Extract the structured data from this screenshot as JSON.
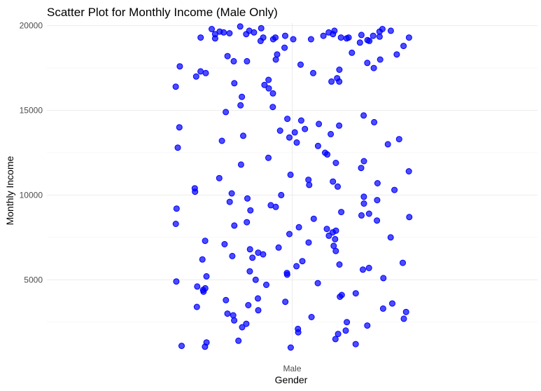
{
  "chart_data": {
    "type": "scatter",
    "title": "Scatter Plot for Monthly Income (Male Only)",
    "xlabel": "Gender",
    "ylabel": "Monthly Income",
    "categories": [
      "Male"
    ],
    "y_ticks": [
      5000,
      10000,
      15000,
      20000
    ],
    "y_tick_labels": [
      "5000",
      "10000",
      "15000",
      "20000"
    ],
    "ylim": [
      958,
      20150
    ],
    "grid": true,
    "legend": "none",
    "point_color": "#0000ff",
    "series": [
      {
        "category": "Male",
        "jitter": [
          -0.48,
          0.48
        ],
        "values": [
          19600,
          19500,
          19400,
          19300,
          19700,
          19500,
          19250,
          19800,
          19300,
          19100,
          19300,
          19600,
          19450,
          19650,
          19200,
          19550,
          19600,
          19000,
          19350,
          19400,
          19300,
          19400,
          19250,
          19100,
          19950,
          19850,
          19700,
          19650,
          19200,
          19300,
          19150,
          19500,
          19800,
          19700,
          19300,
          19200,
          18800,
          18700,
          18400,
          18200,
          18300,
          18000,
          17800,
          17900,
          17700,
          17500,
          17400,
          17300,
          17200,
          17000,
          16900,
          16800,
          16700,
          16600,
          16500,
          16300,
          16000,
          18300,
          18000,
          17600,
          17900,
          17200,
          16700,
          16400,
          15800,
          15300,
          15200,
          14900,
          14700,
          14500,
          14400,
          14300,
          14200,
          14100,
          14000,
          13900,
          13800,
          13700,
          13600,
          13500,
          13400,
          13300,
          13200,
          13100,
          13000,
          12900,
          12800,
          12500,
          12400,
          12200,
          12000,
          11900,
          11800,
          11600,
          11400,
          11200,
          11000,
          10900,
          10800,
          10700,
          10600,
          10500,
          10400,
          10300,
          10200,
          10100,
          10000,
          9900,
          9800,
          9700,
          9600,
          9500,
          9400,
          9300,
          9200,
          9100,
          9000,
          8900,
          8800,
          8700,
          8600,
          8500,
          8400,
          8300,
          8200,
          8100,
          8000,
          7900,
          7800,
          7700,
          7600,
          7500,
          7400,
          7300,
          7200,
          7100,
          7000,
          6900,
          6800,
          6700,
          6600,
          6500,
          6400,
          6300,
          6200,
          6100,
          6000,
          5900,
          5800,
          5700,
          5600,
          5500,
          5400,
          5300,
          5200,
          5100,
          5000,
          4900,
          4800,
          4700,
          4600,
          4500,
          4400,
          4300,
          4200,
          4100,
          4000,
          3900,
          3800,
          3700,
          3600,
          3500,
          3400,
          3300,
          3200,
          3100,
          3000,
          2900,
          2800,
          2700,
          2600,
          2500,
          2400,
          2300,
          2200,
          2100,
          2000,
          1900,
          1800,
          1500,
          1400,
          1300,
          1200,
          1100,
          1050,
          1000
        ]
      }
    ]
  }
}
